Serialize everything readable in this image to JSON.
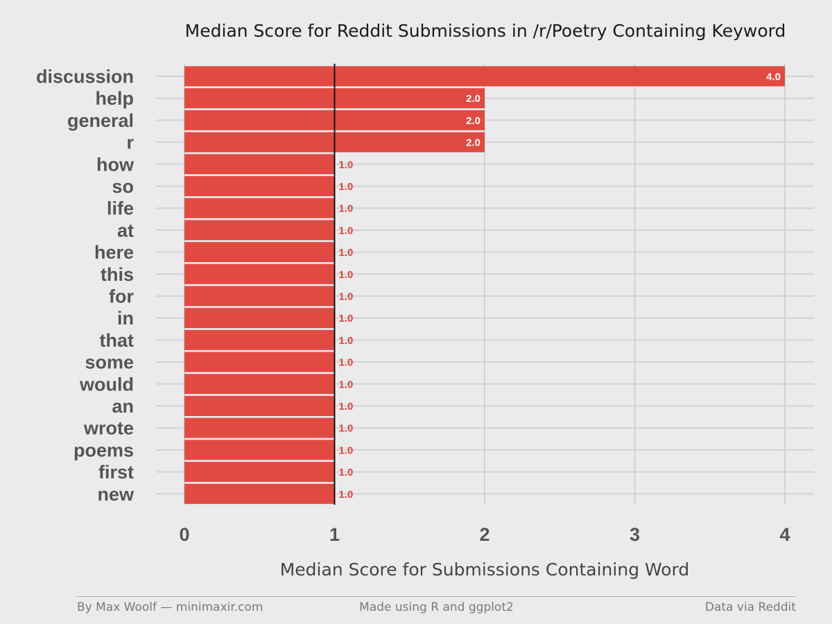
{
  "chart_data": {
    "type": "bar",
    "orientation": "horizontal",
    "title": "Median Score for Reddit Submissions in /r/Poetry Containing Keyword",
    "xlabel": "Median Score for Submissions Containing Word",
    "ylabel": "",
    "categories": [
      "discussion",
      "help",
      "general",
      "r",
      "how",
      "so",
      "life",
      "at",
      "here",
      "this",
      "for",
      "in",
      "that",
      "some",
      "would",
      "an",
      "wrote",
      "poems",
      "first",
      "new"
    ],
    "values": [
      4.0,
      2.0,
      2.0,
      2.0,
      1.0,
      1.0,
      1.0,
      1.0,
      1.0,
      1.0,
      1.0,
      1.0,
      1.0,
      1.0,
      1.0,
      1.0,
      1.0,
      1.0,
      1.0,
      1.0
    ],
    "data_labels": [
      "4.0",
      "2.0",
      "2.0",
      "2.0",
      "1.0",
      "1.0",
      "1.0",
      "1.0",
      "1.0",
      "1.0",
      "1.0",
      "1.0",
      "1.0",
      "1.0",
      "1.0",
      "1.0",
      "1.0",
      "1.0",
      "1.0",
      "1.0"
    ],
    "xlim": [
      0,
      4
    ],
    "xticks": [
      "0",
      "1",
      "2",
      "3",
      "4"
    ],
    "reference_line": 1,
    "grid": true,
    "bar_color": "#e0413a",
    "background": "#ebebeb"
  },
  "footer": {
    "left": "By Max Woolf — minimaxir.com",
    "center": "Made using R and ggplot2",
    "right": "Data via Reddit"
  }
}
